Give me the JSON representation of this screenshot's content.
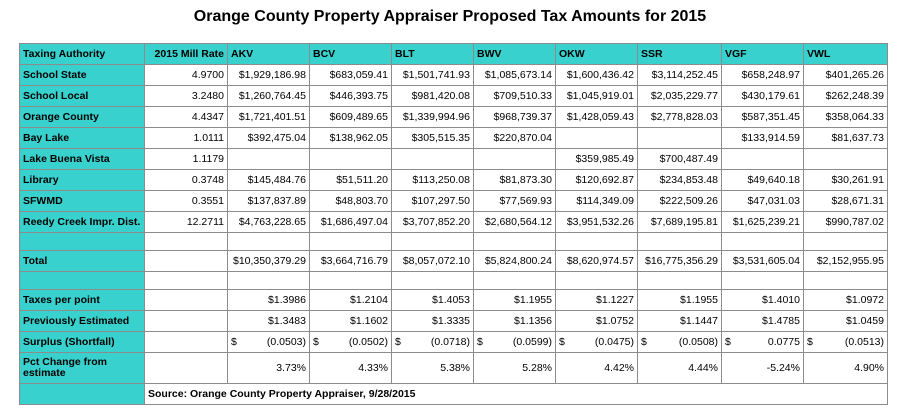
{
  "title": "Orange County Property Appraiser Proposed Tax Amounts for 2015",
  "headers": [
    "Taxing Authority",
    "2015 Mill Rate",
    "AKV",
    "BCV",
    "BLT",
    "BWV",
    "OKW",
    "SSR",
    "VGF",
    "VWL"
  ],
  "rows": [
    {
      "label": "School State",
      "mill": "4.9700",
      "values": [
        "$1,929,186.98",
        "$683,059.41",
        "$1,501,741.93",
        "$1,085,673.14",
        "$1,600,436.42",
        "$3,114,252.45",
        "$658,248.97",
        "$401,265.26"
      ]
    },
    {
      "label": "School Local",
      "mill": "3.2480",
      "values": [
        "$1,260,764.45",
        "$446,393.75",
        "$981,420.08",
        "$709,510.33",
        "$1,045,919.01",
        "$2,035,229.77",
        "$430,179.61",
        "$262,248.39"
      ]
    },
    {
      "label": "Orange County",
      "mill": "4.4347",
      "values": [
        "$1,721,401.51",
        "$609,489.65",
        "$1,339,994.96",
        "$968,739.37",
        "$1,428,059.43",
        "$2,778,828.03",
        "$587,351.45",
        "$358,064.33"
      ]
    },
    {
      "label": "Bay Lake",
      "mill": "1.0111",
      "values": [
        "$392,475.04",
        "$138,962.05",
        "$305,515.35",
        "$220,870.04",
        "",
        "",
        "$133,914.59",
        "$81,637.73"
      ]
    },
    {
      "label": "Lake Buena Vista",
      "mill": "1.1179",
      "values": [
        "",
        "",
        "",
        "",
        "$359,985.49",
        "$700,487.49",
        "",
        ""
      ]
    },
    {
      "label": "Library",
      "mill": "0.3748",
      "values": [
        "$145,484.76",
        "$51,511.20",
        "$113,250.08",
        "$81,873.30",
        "$120,692.87",
        "$234,853.48",
        "$49,640.18",
        "$30,261.91"
      ]
    },
    {
      "label": "SFWMD",
      "mill": "0.3551",
      "values": [
        "$137,837.89",
        "$48,803.70",
        "$107,297.50",
        "$77,569.93",
        "$114,349.09",
        "$222,509.26",
        "$47,031.03",
        "$28,671.31"
      ]
    },
    {
      "label": "Reedy Creek Impr. Dist.",
      "mill": "12.2711",
      "values": [
        "$4,763,228.65",
        "$1,686,497.04",
        "$3,707,852.20",
        "$2,680,564.12",
        "$3,951,532.26",
        "$7,689,195.81",
        "$1,625,239.21",
        "$990,787.02"
      ]
    }
  ],
  "total": {
    "label": "Total",
    "values": [
      "$10,350,379.29",
      "$3,664,716.79",
      "$8,057,072.10",
      "$5,824,800.24",
      "$8,620,974.57",
      "$16,775,356.29",
      "$3,531,605.04",
      "$2,152,955.95"
    ]
  },
  "taxes_per_point": {
    "label": "Taxes per point",
    "values": [
      "$1.3986",
      "$1.2104",
      "$1.4053",
      "$1.1955",
      "$1.1227",
      "$1.1955",
      "$1.4010",
      "$1.0972"
    ]
  },
  "previously_estimated": {
    "label": "Previously Estimated",
    "values": [
      "$1.3483",
      "$1.1602",
      "$1.3335",
      "$1.1356",
      "$1.0752",
      "$1.1447",
      "$1.4785",
      "$1.0459"
    ]
  },
  "surplus": {
    "label": "Surplus (Shortfall)",
    "currency": "$",
    "values": [
      "(0.0503)",
      "(0.0502)",
      "(0.0718)",
      "(0.0599)",
      "(0.0475)",
      "(0.0508)",
      "0.0775",
      "(0.0513)"
    ]
  },
  "pct_change": {
    "label": "Pct Change from estimate",
    "values": [
      "3.73%",
      "4.33%",
      "5.38%",
      "5.28%",
      "4.42%",
      "4.44%",
      "-5.24%",
      "4.90%"
    ]
  },
  "source": "Source:  Orange County Property Appraiser, 9/28/2015",
  "colors": {
    "header_bg": "#39d1cd",
    "grid": "#8c8c8c"
  }
}
